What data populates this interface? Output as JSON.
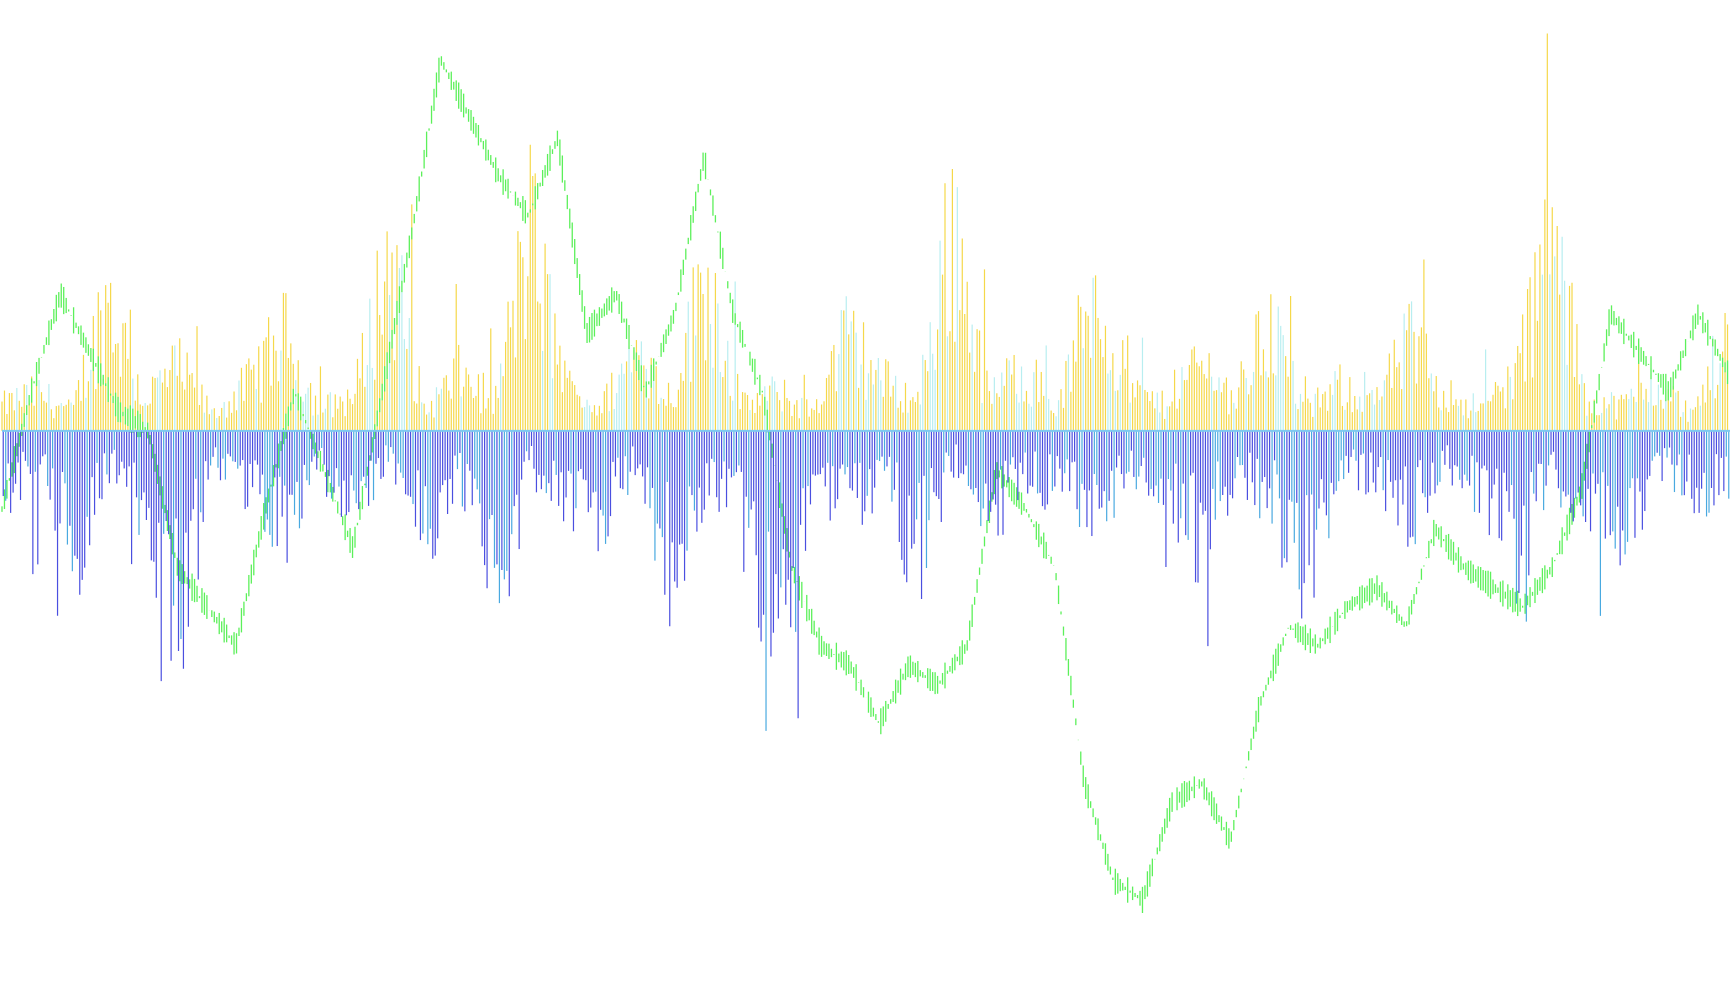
{
  "chart_data": {
    "type": "bar",
    "bar_count": 700,
    "baseline_value": 0,
    "ylim": [
      -1.2,
      1.0
    ],
    "colors": {
      "up_bar": "#f5d84a",
      "up_bar_alt": "#b8eef0",
      "down_bar": "#4a4fe0",
      "down_bar_alt": "#49a9e0",
      "line": "#5cf05a",
      "baseline": "#7ec8f0"
    },
    "summary_series": [
      {
        "kind": "up_magnitude",
        "values": [
          0.08,
          0.12,
          0.06,
          0.42,
          0.1,
          0.2,
          0.05,
          0.15,
          0.3,
          0.07,
          0.11,
          0.55,
          0.06,
          0.18,
          0.09,
          0.62,
          0.14,
          0.07,
          0.25,
          0.1,
          0.5,
          0.08,
          0.12,
          0.06,
          0.3,
          0.16,
          0.09,
          0.65,
          0.11,
          0.2,
          0.07,
          0.45,
          0.13,
          0.08,
          0.22,
          0.1,
          0.35,
          0.06,
          0.14,
          0.09,
          0.28,
          0.12,
          0.07,
          0.18,
          0.6,
          0.1,
          0.08,
          0.15,
          0.05,
          0.3
        ]
      },
      {
        "kind": "down_magnitude",
        "values": [
          0.2,
          0.15,
          0.4,
          0.12,
          0.25,
          0.6,
          0.1,
          0.18,
          0.3,
          0.14,
          0.22,
          0.08,
          0.35,
          0.16,
          0.5,
          0.12,
          0.2,
          0.28,
          0.1,
          0.45,
          0.15,
          0.3,
          0.85,
          0.12,
          0.22,
          0.18,
          0.4,
          0.1,
          0.25,
          0.15,
          0.2,
          0.3,
          0.12,
          0.18,
          0.35,
          0.14,
          0.22,
          0.5,
          0.1,
          0.16,
          0.28,
          0.12,
          0.2,
          0.4,
          0.15,
          0.25,
          0.3,
          0.1,
          0.18,
          0.2
        ]
      },
      {
        "kind": "cumulative_line",
        "values": [
          -0.2,
          0.1,
          0.35,
          0.2,
          0.05,
          0.0,
          -0.35,
          -0.45,
          -0.55,
          -0.2,
          0.1,
          -0.1,
          -0.3,
          0.1,
          0.5,
          0.95,
          0.8,
          0.65,
          0.55,
          0.75,
          0.25,
          0.35,
          0.1,
          0.3,
          0.7,
          0.3,
          0.1,
          -0.35,
          -0.55,
          -0.6,
          -0.75,
          -0.6,
          -0.65,
          -0.55,
          -0.1,
          -0.2,
          -0.35,
          -0.9,
          -1.15,
          -1.2,
          -0.95,
          -0.9,
          -1.05,
          -0.7,
          -0.5,
          -0.55,
          -0.45,
          -0.4,
          -0.5,
          -0.25,
          -0.35,
          -0.4,
          -0.45,
          -0.35,
          -0.15,
          0.3,
          0.2,
          0.1,
          0.3,
          0.15
        ]
      }
    ]
  }
}
